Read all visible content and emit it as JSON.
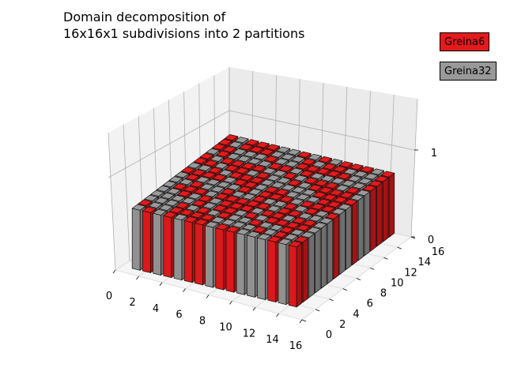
{
  "chart_data": {
    "type": "bar3d",
    "title_line1": "Domain decomposition of",
    "title_line2": "16x16x1 subdivisions into 2 partitions",
    "grid": {
      "nx": 16,
      "ny": 16,
      "nz": 1
    },
    "xlim": [
      0,
      16
    ],
    "ylim": [
      0,
      16
    ],
    "zlim": [
      0,
      1.5
    ],
    "x_ticks": [
      "0",
      "2",
      "4",
      "6",
      "8",
      "10",
      "12",
      "14",
      "16"
    ],
    "y_ticks": [
      "0",
      "2",
      "4",
      "6",
      "8",
      "10",
      "12",
      "14",
      "16"
    ],
    "z_ticks": [
      "0",
      "1"
    ],
    "partitions": [
      {
        "name": "Greina6",
        "color": "#e41a1c"
      },
      {
        "name": "Greina32",
        "color": "#999999"
      }
    ],
    "front_row_y0": [
      1,
      0,
      1,
      0,
      1,
      0,
      0,
      1,
      0,
      0,
      1,
      1,
      1,
      0,
      1,
      0
    ],
    "right_col_x15": [
      0,
      0,
      1,
      1,
      1,
      1,
      0,
      1,
      1,
      0,
      1,
      1,
      0,
      0,
      0,
      0
    ]
  }
}
